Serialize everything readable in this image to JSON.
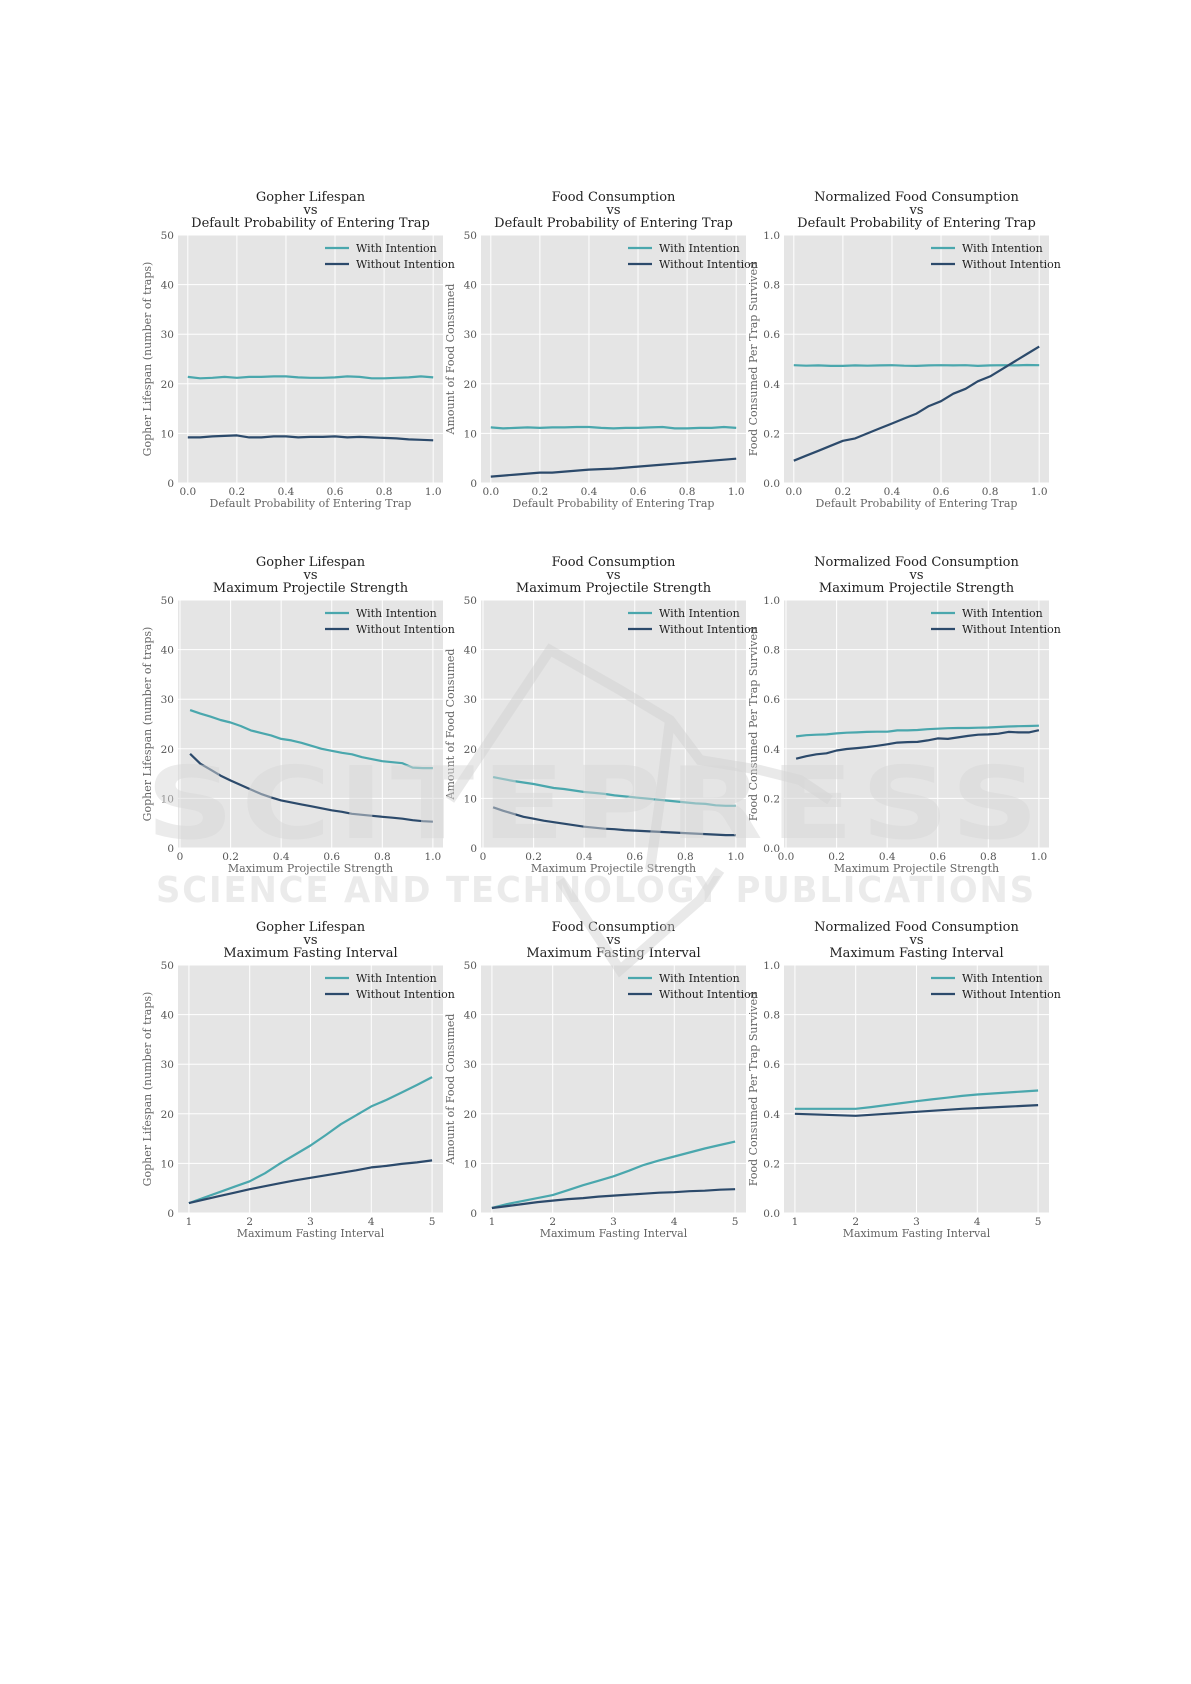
{
  "colors": {
    "with": "#4aa7ad",
    "without": "#2c4a6b",
    "plot_bg": "#e5e5e5",
    "grid": "#ffffff"
  },
  "watermark": {
    "line1": "SCITEPRESS",
    "line2": "SCIENCE AND TECHNOLOGY PUBLICATIONS"
  },
  "chart_data": [
    {
      "type": "line",
      "title": [
        "Gopher Lifespan",
        "vs",
        "Default Probability of Entering Trap"
      ],
      "xlabel": "Default Probability of Entering Trap",
      "ylabel": "Gopher Lifespan (number of traps)",
      "xlim": [
        -0.04,
        1.04
      ],
      "ylim": [
        0,
        50
      ],
      "xticks": [
        0.0,
        0.2,
        0.4,
        0.6,
        0.8,
        1.0
      ],
      "xticklabels": [
        "0.0",
        "0.2",
        "0.4",
        "0.6",
        "0.8",
        "1.0"
      ],
      "yticks": [
        0,
        10,
        20,
        30,
        40,
        50
      ],
      "yticklabels": [
        "0",
        "10",
        "20",
        "30",
        "40",
        "50"
      ],
      "legend": "top-right",
      "x": [
        0.0,
        0.05,
        0.1,
        0.15,
        0.2,
        0.25,
        0.3,
        0.35,
        0.4,
        0.45,
        0.5,
        0.55,
        0.6,
        0.65,
        0.7,
        0.75,
        0.8,
        0.85,
        0.9,
        0.95,
        1.0
      ],
      "series": [
        {
          "name": "With Intention",
          "values": [
            21.4,
            21.1,
            21.2,
            21.4,
            21.2,
            21.4,
            21.4,
            21.5,
            21.5,
            21.3,
            21.2,
            21.2,
            21.3,
            21.5,
            21.4,
            21.1,
            21.1,
            21.2,
            21.3,
            21.5,
            21.3
          ]
        },
        {
          "name": "Without Intention",
          "values": [
            9.2,
            9.2,
            9.4,
            9.5,
            9.6,
            9.2,
            9.2,
            9.4,
            9.4,
            9.2,
            9.3,
            9.3,
            9.4,
            9.2,
            9.3,
            9.2,
            9.1,
            9.0,
            8.8,
            8.7,
            8.6
          ]
        }
      ]
    },
    {
      "type": "line",
      "title": [
        "Food Consumption",
        "vs",
        "Default Probability of Entering Trap"
      ],
      "xlabel": "Default Probability of Entering Trap",
      "ylabel": "Amount of Food Consumed",
      "xlim": [
        -0.04,
        1.04
      ],
      "ylim": [
        0,
        50
      ],
      "xticks": [
        0.0,
        0.2,
        0.4,
        0.6,
        0.8,
        1.0
      ],
      "xticklabels": [
        "0.0",
        "0.2",
        "0.4",
        "0.6",
        "0.8",
        "1.0"
      ],
      "yticks": [
        0,
        10,
        20,
        30,
        40,
        50
      ],
      "yticklabels": [
        "0",
        "10",
        "20",
        "30",
        "40",
        "50"
      ],
      "legend": "top-right",
      "x": [
        0.0,
        0.05,
        0.1,
        0.15,
        0.2,
        0.25,
        0.3,
        0.35,
        0.4,
        0.45,
        0.5,
        0.55,
        0.6,
        0.65,
        0.7,
        0.75,
        0.8,
        0.85,
        0.9,
        0.95,
        1.0
      ],
      "series": [
        {
          "name": "With Intention",
          "values": [
            11.2,
            11.0,
            11.1,
            11.2,
            11.1,
            11.2,
            11.2,
            11.3,
            11.3,
            11.1,
            11.0,
            11.1,
            11.1,
            11.2,
            11.3,
            11.0,
            11.0,
            11.1,
            11.1,
            11.3,
            11.1
          ]
        },
        {
          "name": "Without Intention",
          "values": [
            1.3,
            1.5,
            1.7,
            1.9,
            2.1,
            2.1,
            2.3,
            2.5,
            2.7,
            2.8,
            2.9,
            3.1,
            3.3,
            3.5,
            3.7,
            3.9,
            4.1,
            4.3,
            4.5,
            4.7,
            4.9
          ]
        }
      ]
    },
    {
      "type": "line",
      "title": [
        "Normalized Food Consumption",
        "vs",
        "Default Probability of Entering Trap"
      ],
      "xlabel": "Default Probability of Entering Trap",
      "ylabel": "Food Consumed Per Trap Survived",
      "xlim": [
        -0.04,
        1.04
      ],
      "ylim": [
        0,
        1.0
      ],
      "xticks": [
        0.0,
        0.2,
        0.4,
        0.6,
        0.8,
        1.0
      ],
      "xticklabels": [
        "0.0",
        "0.2",
        "0.4",
        "0.6",
        "0.8",
        "1.0"
      ],
      "yticks": [
        0,
        0.2,
        0.4,
        0.6,
        0.8,
        1.0
      ],
      "yticklabels": [
        "0.0",
        "0.2",
        "0.4",
        "0.6",
        "0.8",
        "1.0"
      ],
      "legend": "top-right",
      "x": [
        0.0,
        0.05,
        0.1,
        0.15,
        0.2,
        0.25,
        0.3,
        0.35,
        0.4,
        0.45,
        0.5,
        0.55,
        0.6,
        0.65,
        0.7,
        0.75,
        0.8,
        0.85,
        0.9,
        0.95,
        1.0
      ],
      "series": [
        {
          "name": "With Intention",
          "values": [
            0.475,
            0.473,
            0.474,
            0.472,
            0.472,
            0.474,
            0.473,
            0.474,
            0.475,
            0.473,
            0.472,
            0.474,
            0.475,
            0.474,
            0.475,
            0.472,
            0.474,
            0.475,
            0.474,
            0.476,
            0.475
          ]
        },
        {
          "name": "Without Intention",
          "values": [
            0.09,
            0.11,
            0.13,
            0.15,
            0.17,
            0.18,
            0.2,
            0.22,
            0.24,
            0.26,
            0.28,
            0.31,
            0.33,
            0.36,
            0.38,
            0.41,
            0.43,
            0.46,
            0.49,
            0.52,
            0.55
          ]
        }
      ]
    },
    {
      "type": "line",
      "title": [
        "Gopher Lifespan",
        "vs",
        "Maximum Projectile Strength"
      ],
      "xlabel": "Maximum Projectile Strength",
      "ylabel": "Gopher Lifespan (number of traps)",
      "xlim": [
        -0.008,
        1.04
      ],
      "ylim": [
        0,
        50
      ],
      "xticks": [
        0.0,
        0.2,
        0.4,
        0.6,
        0.8,
        1.0
      ],
      "xticklabels": [
        "0",
        "0.2",
        "0.4",
        "0.6",
        "0.8",
        "1.0"
      ],
      "yticks": [
        0,
        10,
        20,
        30,
        40,
        50
      ],
      "yticklabels": [
        "0",
        "10",
        "20",
        "30",
        "40",
        "50"
      ],
      "legend": "top-right",
      "x": [
        0.04,
        0.08,
        0.12,
        0.16,
        0.2,
        0.24,
        0.28,
        0.32,
        0.36,
        0.4,
        0.44,
        0.48,
        0.52,
        0.56,
        0.6,
        0.64,
        0.68,
        0.72,
        0.76,
        0.8,
        0.84,
        0.88,
        0.92,
        0.96,
        1.0
      ],
      "series": [
        {
          "name": "With Intention",
          "values": [
            27.8,
            27.1,
            26.5,
            25.8,
            25.3,
            24.6,
            23.7,
            23.2,
            22.7,
            22.0,
            21.7,
            21.2,
            20.6,
            20.0,
            19.6,
            19.2,
            18.9,
            18.3,
            17.9,
            17.5,
            17.3,
            17.1,
            16.2,
            16.1,
            16.1
          ]
        },
        {
          "name": "Without Intention",
          "values": [
            19.0,
            17.0,
            15.8,
            14.6,
            13.6,
            12.7,
            11.8,
            10.9,
            10.2,
            9.6,
            9.2,
            8.8,
            8.4,
            8.0,
            7.6,
            7.3,
            6.9,
            6.7,
            6.5,
            6.3,
            6.1,
            5.9,
            5.6,
            5.4,
            5.3
          ]
        }
      ]
    },
    {
      "type": "line",
      "title": [
        "Food Consumption",
        "vs",
        "Maximum Projectile Strength"
      ],
      "xlabel": "Maximum Projectile Strength",
      "ylabel": "Amount of Food Consumed",
      "xlim": [
        -0.008,
        1.04
      ],
      "ylim": [
        0,
        50
      ],
      "xticks": [
        0.0,
        0.2,
        0.4,
        0.6,
        0.8,
        1.0
      ],
      "xticklabels": [
        "0",
        "0.2",
        "0.4",
        "0.6",
        "0.8",
        "1.0"
      ],
      "yticks": [
        0,
        10,
        20,
        30,
        40,
        50
      ],
      "yticklabels": [
        "0",
        "10",
        "20",
        "30",
        "40",
        "50"
      ],
      "legend": "top-right",
      "x": [
        0.04,
        0.08,
        0.12,
        0.16,
        0.2,
        0.24,
        0.28,
        0.32,
        0.36,
        0.4,
        0.44,
        0.48,
        0.52,
        0.56,
        0.6,
        0.64,
        0.68,
        0.72,
        0.76,
        0.8,
        0.84,
        0.88,
        0.92,
        0.96,
        1.0
      ],
      "series": [
        {
          "name": "With Intention",
          "values": [
            14.3,
            13.9,
            13.5,
            13.2,
            12.9,
            12.5,
            12.1,
            11.9,
            11.6,
            11.3,
            11.1,
            10.9,
            10.6,
            10.4,
            10.2,
            10.0,
            9.8,
            9.6,
            9.4,
            9.2,
            9.0,
            8.9,
            8.6,
            8.5,
            8.5
          ]
        },
        {
          "name": "Without Intention",
          "values": [
            8.2,
            7.5,
            6.9,
            6.3,
            5.9,
            5.5,
            5.2,
            4.9,
            4.6,
            4.3,
            4.1,
            3.9,
            3.8,
            3.6,
            3.5,
            3.4,
            3.3,
            3.2,
            3.1,
            3.0,
            2.9,
            2.8,
            2.7,
            2.6,
            2.6
          ]
        }
      ]
    },
    {
      "type": "line",
      "title": [
        "Normalized Food Consumption",
        "vs",
        "Maximum Projectile Strength"
      ],
      "xlabel": "Maximum Projectile Strength",
      "ylabel": "Food Consumed Per Trap Survived",
      "xlim": [
        -0.008,
        1.04
      ],
      "ylim": [
        0,
        1.0
      ],
      "xticks": [
        0.0,
        0.2,
        0.4,
        0.6,
        0.8,
        1.0
      ],
      "xticklabels": [
        "0.0",
        "0.2",
        "0.4",
        "0.6",
        "0.8",
        "1.0"
      ],
      "yticks": [
        0,
        0.2,
        0.4,
        0.6,
        0.8,
        1.0
      ],
      "yticklabels": [
        "0.0",
        "0.2",
        "0.4",
        "0.6",
        "0.8",
        "1.0"
      ],
      "legend": "top-right",
      "x": [
        0.04,
        0.08,
        0.12,
        0.16,
        0.2,
        0.24,
        0.28,
        0.32,
        0.36,
        0.4,
        0.44,
        0.48,
        0.52,
        0.56,
        0.6,
        0.64,
        0.68,
        0.72,
        0.76,
        0.8,
        0.84,
        0.88,
        0.92,
        0.96,
        1.0
      ],
      "series": [
        {
          "name": "With Intention",
          "values": [
            0.45,
            0.455,
            0.457,
            0.458,
            0.462,
            0.465,
            0.466,
            0.468,
            0.469,
            0.469,
            0.474,
            0.474,
            0.476,
            0.479,
            0.481,
            0.483,
            0.484,
            0.484,
            0.485,
            0.486,
            0.488,
            0.49,
            0.491,
            0.492,
            0.493
          ]
        },
        {
          "name": "Without Intention",
          "values": [
            0.36,
            0.37,
            0.378,
            0.382,
            0.393,
            0.399,
            0.403,
            0.407,
            0.412,
            0.418,
            0.425,
            0.427,
            0.428,
            0.434,
            0.442,
            0.44,
            0.446,
            0.452,
            0.457,
            0.458,
            0.461,
            0.468,
            0.466,
            0.466,
            0.475
          ]
        }
      ]
    },
    {
      "type": "line",
      "title": [
        "Gopher Lifespan",
        "vs",
        "Maximum Fasting Interval"
      ],
      "xlabel": "Maximum Fasting Interval",
      "ylabel": "Gopher Lifespan (number of traps)",
      "xlim": [
        0.82,
        5.18
      ],
      "ylim": [
        0,
        50
      ],
      "xticks": [
        1,
        2,
        3,
        4,
        5
      ],
      "xticklabels": [
        "1",
        "2",
        "3",
        "4",
        "5"
      ],
      "yticks": [
        0,
        10,
        20,
        30,
        40,
        50
      ],
      "yticklabels": [
        "0",
        "10",
        "20",
        "30",
        "40",
        "50"
      ],
      "legend": "top-right",
      "x": [
        1.0,
        1.25,
        1.5,
        1.75,
        2.0,
        2.25,
        2.5,
        2.75,
        3.0,
        3.25,
        3.5,
        3.75,
        4.0,
        4.25,
        4.5,
        4.75,
        5.0
      ],
      "series": [
        {
          "name": "With Intention",
          "values": [
            2.0,
            3.1,
            4.2,
            5.3,
            6.4,
            8.0,
            10.0,
            11.8,
            13.6,
            15.7,
            17.9,
            19.7,
            21.5,
            22.8,
            24.3,
            25.8,
            27.4
          ]
        },
        {
          "name": "Without Intention",
          "values": [
            2.0,
            2.7,
            3.4,
            4.1,
            4.8,
            5.4,
            6.0,
            6.6,
            7.1,
            7.6,
            8.1,
            8.6,
            9.2,
            9.5,
            9.9,
            10.2,
            10.6
          ]
        }
      ]
    },
    {
      "type": "line",
      "title": [
        "Food Consumption",
        "vs",
        "Maximum Fasting Interval"
      ],
      "xlabel": "Maximum Fasting Interval",
      "ylabel": "Amount of Food Consumed",
      "xlim": [
        0.82,
        5.18
      ],
      "ylim": [
        0,
        50
      ],
      "xticks": [
        1,
        2,
        3,
        4,
        5
      ],
      "xticklabels": [
        "1",
        "2",
        "3",
        "4",
        "5"
      ],
      "yticks": [
        0,
        10,
        20,
        30,
        40,
        50
      ],
      "yticklabels": [
        "0",
        "10",
        "20",
        "30",
        "40",
        "50"
      ],
      "legend": "top-right",
      "x": [
        1.0,
        1.25,
        1.5,
        1.75,
        2.0,
        2.25,
        2.5,
        2.75,
        3.0,
        3.25,
        3.5,
        3.75,
        4.0,
        4.25,
        4.5,
        4.75,
        5.0
      ],
      "series": [
        {
          "name": "With Intention",
          "values": [
            1.0,
            1.8,
            2.4,
            3.0,
            3.6,
            4.6,
            5.6,
            6.5,
            7.4,
            8.5,
            9.7,
            10.6,
            11.4,
            12.2,
            13.0,
            13.7,
            14.4
          ]
        },
        {
          "name": "Without Intention",
          "values": [
            1.0,
            1.4,
            1.8,
            2.2,
            2.5,
            2.8,
            3.0,
            3.3,
            3.5,
            3.7,
            3.9,
            4.1,
            4.2,
            4.4,
            4.5,
            4.7,
            4.8
          ]
        }
      ]
    },
    {
      "type": "line",
      "title": [
        "Normalized Food Consumption",
        "vs",
        "Maximum Fasting Interval"
      ],
      "xlabel": "Maximum Fasting Interval",
      "ylabel": "Food Consumed Per Trap Survived",
      "xlim": [
        0.82,
        5.18
      ],
      "ylim": [
        0,
        1.0
      ],
      "xticks": [
        1,
        2,
        3,
        4,
        5
      ],
      "xticklabels": [
        "1",
        "2",
        "3",
        "4",
        "5"
      ],
      "yticks": [
        0,
        0.2,
        0.4,
        0.6,
        0.8,
        1.0
      ],
      "yticklabels": [
        "0.0",
        "0.2",
        "0.4",
        "0.6",
        "0.8",
        "1.0"
      ],
      "legend": "top-right",
      "x": [
        1.0,
        1.25,
        1.5,
        1.75,
        2.0,
        2.25,
        2.5,
        2.75,
        3.0,
        3.25,
        3.5,
        3.75,
        4.0,
        4.25,
        4.5,
        4.75,
        5.0
      ],
      "series": [
        {
          "name": "With Intention",
          "values": [
            0.42,
            0.42,
            0.42,
            0.42,
            0.42,
            0.427,
            0.435,
            0.443,
            0.451,
            0.458,
            0.465,
            0.472,
            0.478,
            0.482,
            0.486,
            0.49,
            0.494
          ]
        },
        {
          "name": "Without Intention",
          "values": [
            0.4,
            0.398,
            0.396,
            0.394,
            0.392,
            0.396,
            0.4,
            0.404,
            0.408,
            0.412,
            0.416,
            0.42,
            0.423,
            0.426,
            0.429,
            0.432,
            0.435
          ]
        }
      ]
    }
  ]
}
